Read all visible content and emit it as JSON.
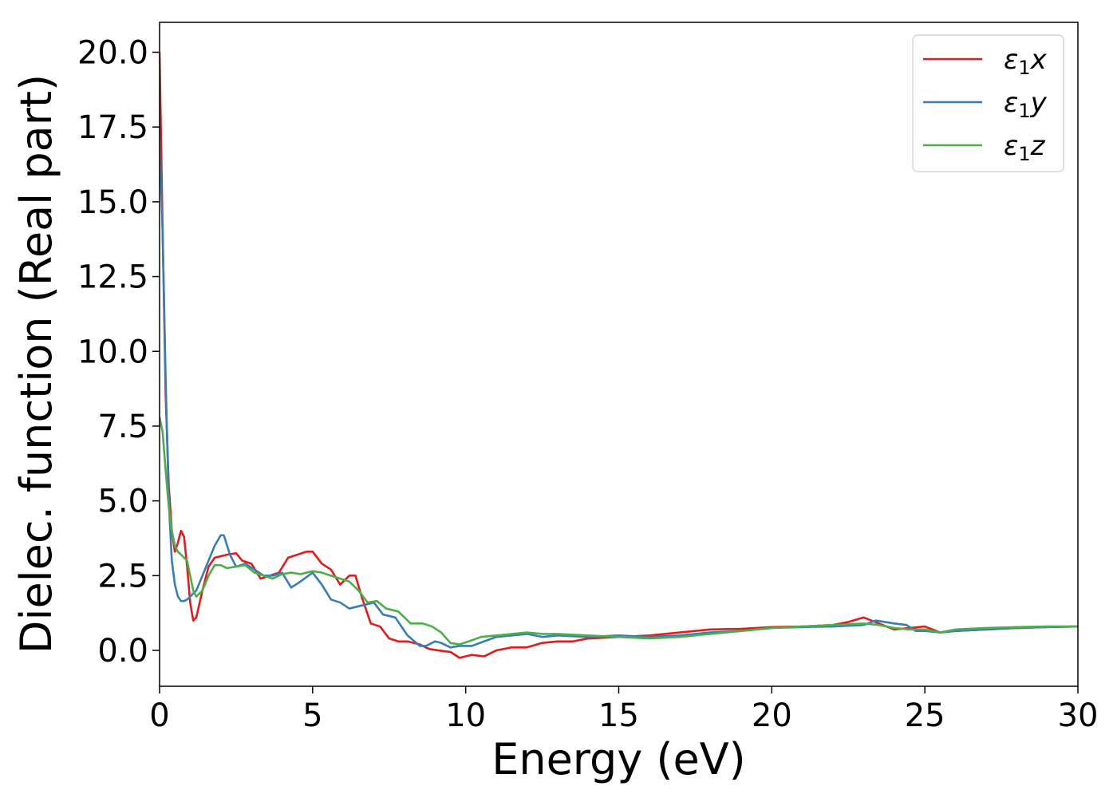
{
  "chart_data": {
    "type": "line",
    "title": "",
    "xlabel": "Energy (eV)",
    "ylabel": "Dielec. function (Real part)",
    "xlim": [
      0,
      30
    ],
    "ylim": [
      -1.2,
      21.0
    ],
    "x_ticks": [
      0,
      5,
      10,
      15,
      20,
      25,
      30
    ],
    "x_tick_labels": [
      "0",
      "5",
      "10",
      "15",
      "20",
      "25",
      "30"
    ],
    "y_ticks": [
      0,
      2.5,
      5,
      7.5,
      10,
      12.5,
      15,
      17.5,
      20
    ],
    "y_tick_labels": [
      "0.0",
      "2.5",
      "5.0",
      "7.5",
      "10.0",
      "12.5",
      "15.0",
      "17.5",
      "20.0"
    ],
    "grid": false,
    "legend_position": "top-right",
    "series": [
      {
        "name": "ε1x",
        "legend_main": "ε",
        "legend_sub": "1",
        "legend_var": "x",
        "color": "#e41a1c",
        "x": [
          0,
          0.1,
          0.2,
          0.3,
          0.4,
          0.5,
          0.6,
          0.7,
          0.8,
          0.9,
          1.0,
          1.1,
          1.2,
          1.4,
          1.6,
          1.8,
          2.0,
          2.2,
          2.5,
          2.7,
          3.0,
          3.3,
          3.6,
          3.9,
          4.2,
          4.5,
          4.8,
          5.0,
          5.3,
          5.6,
          5.9,
          6.2,
          6.4,
          6.6,
          6.9,
          7.2,
          7.5,
          7.8,
          8.1,
          8.5,
          8.8,
          9.1,
          9.5,
          9.8,
          10.2,
          10.6,
          11.0,
          11.5,
          12.0,
          12.5,
          13.0,
          13.5,
          14.0,
          15.0,
          16.0,
          17.0,
          18.0,
          19.0,
          20.0,
          21.0,
          22.0,
          22.5,
          23.0,
          23.5,
          24.0,
          24.5,
          25.0,
          25.5,
          26.0,
          27.0,
          28.0,
          29.0,
          30.0
        ],
        "y": [
          20.0,
          14.0,
          8.5,
          5.5,
          4.0,
          3.3,
          3.6,
          4.0,
          3.8,
          2.8,
          1.6,
          1.0,
          1.1,
          2.0,
          2.8,
          3.1,
          3.15,
          3.2,
          3.25,
          3.0,
          2.9,
          2.4,
          2.5,
          2.6,
          3.1,
          3.2,
          3.3,
          3.3,
          2.9,
          2.7,
          2.2,
          2.5,
          2.5,
          1.8,
          0.9,
          0.8,
          0.4,
          0.3,
          0.3,
          0.2,
          0.05,
          0.0,
          -0.05,
          -0.25,
          -0.15,
          -0.2,
          0.0,
          0.1,
          0.1,
          0.25,
          0.3,
          0.3,
          0.4,
          0.45,
          0.5,
          0.6,
          0.7,
          0.72,
          0.78,
          0.8,
          0.85,
          0.95,
          1.1,
          0.9,
          0.7,
          0.75,
          0.8,
          0.6,
          0.65,
          0.7,
          0.75,
          0.78,
          0.8
        ]
      },
      {
        "name": "ε1y",
        "legend_main": "ε",
        "legend_sub": "1",
        "legend_var": "y",
        "color": "#377eb8",
        "x": [
          0,
          0.1,
          0.2,
          0.3,
          0.4,
          0.5,
          0.6,
          0.7,
          0.8,
          0.9,
          1.0,
          1.1,
          1.2,
          1.4,
          1.6,
          1.8,
          2.0,
          2.1,
          2.3,
          2.5,
          2.8,
          3.1,
          3.4,
          3.7,
          4.0,
          4.3,
          4.6,
          5.0,
          5.3,
          5.6,
          5.9,
          6.2,
          6.6,
          7.0,
          7.3,
          7.7,
          8.1,
          8.5,
          8.7,
          9.0,
          9.2,
          9.5,
          9.8,
          10.2,
          10.6,
          11.0,
          11.5,
          12.0,
          12.5,
          13.0,
          14.0,
          15.0,
          16.0,
          17.0,
          18.0,
          19.0,
          20.0,
          21.0,
          22.0,
          23.0,
          23.4,
          23.7,
          24.0,
          24.4,
          24.7,
          25.0,
          25.5,
          26.0,
          27.0,
          28.0,
          29.0,
          30.0
        ],
        "y": [
          17.2,
          14.0,
          9.0,
          5.0,
          3.0,
          2.2,
          1.8,
          1.65,
          1.65,
          1.7,
          1.8,
          1.9,
          2.0,
          2.5,
          3.0,
          3.5,
          3.85,
          3.85,
          3.2,
          2.8,
          2.9,
          2.7,
          2.5,
          2.5,
          2.6,
          2.1,
          2.3,
          2.6,
          2.2,
          1.7,
          1.6,
          1.4,
          1.5,
          1.6,
          1.2,
          1.1,
          0.5,
          0.15,
          0.15,
          0.3,
          0.25,
          0.1,
          0.15,
          0.15,
          0.3,
          0.45,
          0.5,
          0.55,
          0.45,
          0.5,
          0.45,
          0.5,
          0.45,
          0.5,
          0.6,
          0.65,
          0.75,
          0.78,
          0.8,
          0.85,
          1.0,
          0.95,
          0.9,
          0.85,
          0.65,
          0.65,
          0.6,
          0.65,
          0.7,
          0.75,
          0.78,
          0.8
        ]
      },
      {
        "name": "ε1z",
        "legend_main": "ε",
        "legend_sub": "1",
        "legend_var": "z",
        "color": "#4daf4a",
        "x": [
          0,
          0.1,
          0.2,
          0.3,
          0.4,
          0.5,
          0.6,
          0.7,
          0.8,
          0.9,
          1.0,
          1.1,
          1.2,
          1.4,
          1.6,
          1.8,
          2.0,
          2.2,
          2.5,
          2.8,
          3.1,
          3.4,
          3.7,
          4.0,
          4.3,
          4.6,
          5.0,
          5.3,
          5.6,
          5.9,
          6.2,
          6.5,
          6.8,
          7.1,
          7.4,
          7.8,
          8.2,
          8.6,
          8.9,
          9.2,
          9.5,
          9.8,
          10.1,
          10.5,
          11.0,
          11.5,
          12.0,
          12.5,
          13.0,
          14.0,
          15.0,
          16.0,
          17.0,
          18.0,
          19.0,
          20.0,
          21.0,
          22.0,
          23.0,
          23.5,
          24.0,
          24.5,
          25.0,
          25.5,
          26.0,
          27.0,
          28.0,
          29.0,
          30.0
        ],
        "y": [
          7.8,
          7.3,
          6.0,
          4.8,
          4.0,
          3.5,
          3.3,
          3.2,
          3.1,
          3.0,
          2.5,
          2.0,
          1.8,
          2.0,
          2.5,
          2.85,
          2.85,
          2.75,
          2.8,
          2.85,
          2.6,
          2.5,
          2.4,
          2.55,
          2.6,
          2.55,
          2.65,
          2.6,
          2.5,
          2.4,
          2.3,
          2.0,
          1.6,
          1.65,
          1.4,
          1.3,
          0.9,
          0.9,
          0.8,
          0.6,
          0.25,
          0.2,
          0.3,
          0.45,
          0.5,
          0.55,
          0.6,
          0.55,
          0.55,
          0.5,
          0.45,
          0.4,
          0.45,
          0.55,
          0.65,
          0.75,
          0.8,
          0.85,
          0.9,
          0.85,
          0.75,
          0.7,
          0.7,
          0.6,
          0.7,
          0.75,
          0.78,
          0.8,
          0.8
        ]
      }
    ]
  }
}
